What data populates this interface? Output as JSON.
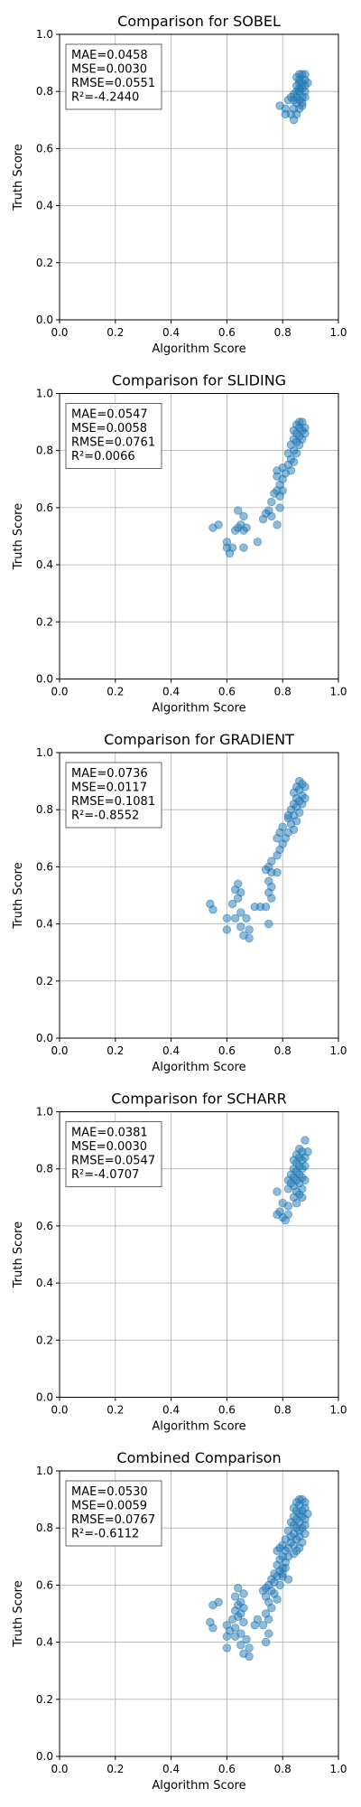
{
  "chart_data": [
    {
      "type": "scatter",
      "title": "Comparison for SOBEL",
      "xlabel": "Algorithm Score",
      "ylabel": "Truth Score",
      "xlim": [
        0,
        1
      ],
      "ylim": [
        0,
        1
      ],
      "xticks": [
        "0.0",
        "0.2",
        "0.4",
        "0.6",
        "0.8",
        "1.0"
      ],
      "yticks": [
        "0.0",
        "0.2",
        "0.4",
        "0.6",
        "0.8",
        "1.0"
      ],
      "grid": true,
      "point_color": "#1f77b4",
      "stats": [
        "MAE=0.0458",
        "MSE=0.0030",
        "RMSE=0.0551",
        "R²=-4.2440"
      ],
      "stats_position": "top-left",
      "points": [
        [
          0.86,
          0.86
        ],
        [
          0.87,
          0.86
        ],
        [
          0.88,
          0.86
        ],
        [
          0.85,
          0.85
        ],
        [
          0.86,
          0.84
        ],
        [
          0.88,
          0.84
        ],
        [
          0.87,
          0.83
        ],
        [
          0.85,
          0.82
        ],
        [
          0.86,
          0.83
        ],
        [
          0.88,
          0.82
        ],
        [
          0.89,
          0.83
        ],
        [
          0.87,
          0.81
        ],
        [
          0.85,
          0.8
        ],
        [
          0.86,
          0.8
        ],
        [
          0.88,
          0.8
        ],
        [
          0.84,
          0.79
        ],
        [
          0.85,
          0.78
        ],
        [
          0.87,
          0.78
        ],
        [
          0.83,
          0.78
        ],
        [
          0.84,
          0.77
        ],
        [
          0.86,
          0.77
        ],
        [
          0.88,
          0.78
        ],
        [
          0.82,
          0.77
        ],
        [
          0.85,
          0.76
        ],
        [
          0.87,
          0.75
        ],
        [
          0.79,
          0.75
        ],
        [
          0.81,
          0.74
        ],
        [
          0.84,
          0.74
        ],
        [
          0.86,
          0.74
        ],
        [
          0.83,
          0.72
        ],
        [
          0.85,
          0.72
        ],
        [
          0.81,
          0.72
        ],
        [
          0.84,
          0.7
        ],
        [
          0.87,
          0.76
        ],
        [
          0.86,
          0.81
        ]
      ]
    },
    {
      "type": "scatter",
      "title": "Comparison for SLIDING",
      "xlabel": "Algorithm Score",
      "ylabel": "Truth Score",
      "xlim": [
        0,
        1
      ],
      "ylim": [
        0,
        1
      ],
      "xticks": [
        "0.0",
        "0.2",
        "0.4",
        "0.6",
        "0.8",
        "1.0"
      ],
      "yticks": [
        "0.0",
        "0.2",
        "0.4",
        "0.6",
        "0.8",
        "1.0"
      ],
      "grid": true,
      "point_color": "#1f77b4",
      "stats": [
        "MAE=0.0547",
        "MSE=0.0058",
        "RMSE=0.0761",
        "R²=0.0066"
      ],
      "stats_position": "top-left",
      "points": [
        [
          0.86,
          0.9
        ],
        [
          0.87,
          0.9
        ],
        [
          0.85,
          0.89
        ],
        [
          0.88,
          0.88
        ],
        [
          0.86,
          0.88
        ],
        [
          0.84,
          0.87
        ],
        [
          0.87,
          0.87
        ],
        [
          0.85,
          0.86
        ],
        [
          0.88,
          0.86
        ],
        [
          0.86,
          0.85
        ],
        [
          0.84,
          0.84
        ],
        [
          0.87,
          0.84
        ],
        [
          0.85,
          0.83
        ],
        [
          0.83,
          0.82
        ],
        [
          0.86,
          0.82
        ],
        [
          0.84,
          0.8
        ],
        [
          0.82,
          0.79
        ],
        [
          0.85,
          0.79
        ],
        [
          0.83,
          0.77
        ],
        [
          0.84,
          0.76
        ],
        [
          0.82,
          0.75
        ],
        [
          0.8,
          0.74
        ],
        [
          0.83,
          0.73
        ],
        [
          0.78,
          0.73
        ],
        [
          0.81,
          0.72
        ],
        [
          0.78,
          0.71
        ],
        [
          0.8,
          0.7
        ],
        [
          0.79,
          0.68
        ],
        [
          0.78,
          0.66
        ],
        [
          0.79,
          0.64
        ],
        [
          0.77,
          0.65
        ],
        [
          0.76,
          0.62
        ],
        [
          0.79,
          0.6
        ],
        [
          0.75,
          0.59
        ],
        [
          0.74,
          0.58
        ],
        [
          0.76,
          0.57
        ],
        [
          0.73,
          0.56
        ],
        [
          0.78,
          0.54
        ],
        [
          0.64,
          0.59
        ],
        [
          0.66,
          0.57
        ],
        [
          0.65,
          0.54
        ],
        [
          0.67,
          0.53
        ],
        [
          0.64,
          0.53
        ],
        [
          0.63,
          0.52
        ],
        [
          0.66,
          0.52
        ],
        [
          0.57,
          0.54
        ],
        [
          0.55,
          0.53
        ],
        [
          0.6,
          0.48
        ],
        [
          0.62,
          0.46
        ],
        [
          0.6,
          0.46
        ],
        [
          0.61,
          0.44
        ],
        [
          0.66,
          0.46
        ],
        [
          0.71,
          0.48
        ],
        [
          0.8,
          0.66
        ]
      ]
    },
    {
      "type": "scatter",
      "title": "Comparison for GRADIENT",
      "xlabel": "Algorithm Score",
      "ylabel": "Truth Score",
      "xlim": [
        0,
        1
      ],
      "ylim": [
        0,
        1
      ],
      "xticks": [
        "0.0",
        "0.2",
        "0.4",
        "0.6",
        "0.8",
        "1.0"
      ],
      "yticks": [
        "0.0",
        "0.2",
        "0.4",
        "0.6",
        "0.8",
        "1.0"
      ],
      "grid": true,
      "point_color": "#1f77b4",
      "stats": [
        "MAE=0.0736",
        "MSE=0.0117",
        "RMSE=0.1081",
        "R²=-0.8552"
      ],
      "stats_position": "top-left",
      "points": [
        [
          0.86,
          0.9
        ],
        [
          0.87,
          0.89
        ],
        [
          0.85,
          0.88
        ],
        [
          0.88,
          0.88
        ],
        [
          0.86,
          0.87
        ],
        [
          0.84,
          0.86
        ],
        [
          0.87,
          0.85
        ],
        [
          0.85,
          0.84
        ],
        [
          0.88,
          0.84
        ],
        [
          0.86,
          0.83
        ],
        [
          0.84,
          0.82
        ],
        [
          0.87,
          0.82
        ],
        [
          0.85,
          0.81
        ],
        [
          0.83,
          0.8
        ],
        [
          0.86,
          0.79
        ],
        [
          0.84,
          0.78
        ],
        [
          0.82,
          0.77
        ],
        [
          0.85,
          0.76
        ],
        [
          0.83,
          0.75
        ],
        [
          0.8,
          0.74
        ],
        [
          0.84,
          0.73
        ],
        [
          0.82,
          0.72
        ],
        [
          0.79,
          0.72
        ],
        [
          0.81,
          0.7
        ],
        [
          0.8,
          0.68
        ],
        [
          0.79,
          0.66
        ],
        [
          0.78,
          0.64
        ],
        [
          0.76,
          0.62
        ],
        [
          0.75,
          0.6
        ],
        [
          0.76,
          0.58
        ],
        [
          0.74,
          0.59
        ],
        [
          0.78,
          0.58
        ],
        [
          0.75,
          0.55
        ],
        [
          0.76,
          0.53
        ],
        [
          0.75,
          0.51
        ],
        [
          0.76,
          0.49
        ],
        [
          0.74,
          0.46
        ],
        [
          0.72,
          0.46
        ],
        [
          0.75,
          0.4
        ],
        [
          0.64,
          0.54
        ],
        [
          0.63,
          0.52
        ],
        [
          0.65,
          0.51
        ],
        [
          0.64,
          0.49
        ],
        [
          0.62,
          0.47
        ],
        [
          0.65,
          0.44
        ],
        [
          0.63,
          0.42
        ],
        [
          0.6,
          0.42
        ],
        [
          0.67,
          0.42
        ],
        [
          0.65,
          0.39
        ],
        [
          0.6,
          0.38
        ],
        [
          0.68,
          0.38
        ],
        [
          0.66,
          0.36
        ],
        [
          0.68,
          0.35
        ],
        [
          0.54,
          0.47
        ],
        [
          0.55,
          0.45
        ],
        [
          0.7,
          0.46
        ],
        [
          0.78,
          0.7
        ],
        [
          0.82,
          0.78
        ]
      ]
    },
    {
      "type": "scatter",
      "title": "Comparison for SCHARR",
      "xlabel": "Algorithm Score",
      "ylabel": "Truth Score",
      "xlim": [
        0,
        1
      ],
      "ylim": [
        0,
        1
      ],
      "xticks": [
        "0.0",
        "0.2",
        "0.4",
        "0.6",
        "0.8",
        "1.0"
      ],
      "yticks": [
        "0.0",
        "0.2",
        "0.4",
        "0.6",
        "0.8",
        "1.0"
      ],
      "grid": true,
      "point_color": "#1f77b4",
      "stats": [
        "MAE=0.0381",
        "MSE=0.0030",
        "RMSE=0.0547",
        "R²=-4.0707"
      ],
      "stats_position": "top-left",
      "points": [
        [
          0.88,
          0.9
        ],
        [
          0.86,
          0.87
        ],
        [
          0.87,
          0.86
        ],
        [
          0.89,
          0.86
        ],
        [
          0.85,
          0.85
        ],
        [
          0.86,
          0.84
        ],
        [
          0.88,
          0.84
        ],
        [
          0.84,
          0.83
        ],
        [
          0.87,
          0.83
        ],
        [
          0.85,
          0.82
        ],
        [
          0.86,
          0.81
        ],
        [
          0.88,
          0.81
        ],
        [
          0.84,
          0.8
        ],
        [
          0.87,
          0.8
        ],
        [
          0.85,
          0.79
        ],
        [
          0.83,
          0.78
        ],
        [
          0.86,
          0.78
        ],
        [
          0.84,
          0.77
        ],
        [
          0.87,
          0.77
        ],
        [
          0.82,
          0.76
        ],
        [
          0.85,
          0.76
        ],
        [
          0.88,
          0.76
        ],
        [
          0.83,
          0.75
        ],
        [
          0.86,
          0.75
        ],
        [
          0.84,
          0.74
        ],
        [
          0.87,
          0.73
        ],
        [
          0.82,
          0.73
        ],
        [
          0.85,
          0.72
        ],
        [
          0.78,
          0.72
        ],
        [
          0.86,
          0.71
        ],
        [
          0.84,
          0.7
        ],
        [
          0.85,
          0.68
        ],
        [
          0.8,
          0.68
        ],
        [
          0.82,
          0.67
        ],
        [
          0.79,
          0.65
        ],
        [
          0.78,
          0.64
        ],
        [
          0.82,
          0.64
        ],
        [
          0.8,
          0.63
        ],
        [
          0.81,
          0.62
        ],
        [
          0.87,
          0.7
        ]
      ]
    },
    {
      "type": "scatter",
      "title": "Combined Comparison",
      "xlabel": "Algorithm Score",
      "ylabel": "Truth Score",
      "xlim": [
        0,
        1
      ],
      "ylim": [
        0,
        1
      ],
      "xticks": [
        "0.0",
        "0.2",
        "0.4",
        "0.6",
        "0.8",
        "1.0"
      ],
      "yticks": [
        "0.0",
        "0.2",
        "0.4",
        "0.6",
        "0.8",
        "1.0"
      ],
      "grid": true,
      "point_color": "#1f77b4",
      "stats": [
        "MAE=0.0530",
        "MSE=0.0059",
        "RMSE=0.0767",
        "R²=-0.6112"
      ],
      "stats_position": "top-left",
      "points": [
        [
          0.86,
          0.9
        ],
        [
          0.87,
          0.9
        ],
        [
          0.88,
          0.89
        ],
        [
          0.85,
          0.89
        ],
        [
          0.86,
          0.88
        ],
        [
          0.88,
          0.87
        ],
        [
          0.84,
          0.87
        ],
        [
          0.87,
          0.86
        ],
        [
          0.85,
          0.86
        ],
        [
          0.89,
          0.85
        ],
        [
          0.86,
          0.85
        ],
        [
          0.84,
          0.84
        ],
        [
          0.87,
          0.84
        ],
        [
          0.88,
          0.83
        ],
        [
          0.85,
          0.83
        ],
        [
          0.83,
          0.82
        ],
        [
          0.86,
          0.82
        ],
        [
          0.88,
          0.81
        ],
        [
          0.84,
          0.81
        ],
        [
          0.87,
          0.8
        ],
        [
          0.85,
          0.8
        ],
        [
          0.82,
          0.79
        ],
        [
          0.86,
          0.79
        ],
        [
          0.88,
          0.78
        ],
        [
          0.84,
          0.78
        ],
        [
          0.83,
          0.77
        ],
        [
          0.86,
          0.77
        ],
        [
          0.81,
          0.76
        ],
        [
          0.85,
          0.76
        ],
        [
          0.87,
          0.75
        ],
        [
          0.83,
          0.75
        ],
        [
          0.8,
          0.74
        ],
        [
          0.84,
          0.74
        ],
        [
          0.86,
          0.73
        ],
        [
          0.82,
          0.73
        ],
        [
          0.79,
          0.73
        ],
        [
          0.85,
          0.72
        ],
        [
          0.81,
          0.72
        ],
        [
          0.78,
          0.72
        ],
        [
          0.84,
          0.71
        ],
        [
          0.8,
          0.7
        ],
        [
          0.82,
          0.7
        ],
        [
          0.79,
          0.69
        ],
        [
          0.81,
          0.68
        ],
        [
          0.78,
          0.67
        ],
        [
          0.8,
          0.66
        ],
        [
          0.79,
          0.65
        ],
        [
          0.77,
          0.64
        ],
        [
          0.78,
          0.63
        ],
        [
          0.8,
          0.63
        ],
        [
          0.76,
          0.62
        ],
        [
          0.77,
          0.61
        ],
        [
          0.75,
          0.6
        ],
        [
          0.79,
          0.6
        ],
        [
          0.74,
          0.59
        ],
        [
          0.76,
          0.58
        ],
        [
          0.73,
          0.58
        ],
        [
          0.77,
          0.57
        ],
        [
          0.74,
          0.56
        ],
        [
          0.78,
          0.55
        ],
        [
          0.75,
          0.54
        ],
        [
          0.76,
          0.52
        ],
        [
          0.74,
          0.5
        ],
        [
          0.75,
          0.48
        ],
        [
          0.73,
          0.46
        ],
        [
          0.75,
          0.43
        ],
        [
          0.74,
          0.4
        ],
        [
          0.64,
          0.59
        ],
        [
          0.66,
          0.57
        ],
        [
          0.63,
          0.56
        ],
        [
          0.65,
          0.54
        ],
        [
          0.64,
          0.53
        ],
        [
          0.66,
          0.52
        ],
        [
          0.63,
          0.51
        ],
        [
          0.65,
          0.5
        ],
        [
          0.64,
          0.49
        ],
        [
          0.62,
          0.48
        ],
        [
          0.66,
          0.47
        ],
        [
          0.6,
          0.46
        ],
        [
          0.63,
          0.45
        ],
        [
          0.61,
          0.44
        ],
        [
          0.65,
          0.43
        ],
        [
          0.6,
          0.42
        ],
        [
          0.63,
          0.42
        ],
        [
          0.67,
          0.41
        ],
        [
          0.65,
          0.39
        ],
        [
          0.6,
          0.38
        ],
        [
          0.68,
          0.38
        ],
        [
          0.66,
          0.36
        ],
        [
          0.68,
          0.35
        ],
        [
          0.57,
          0.54
        ],
        [
          0.55,
          0.53
        ],
        [
          0.54,
          0.47
        ],
        [
          0.55,
          0.45
        ],
        [
          0.7,
          0.46
        ],
        [
          0.71,
          0.48
        ],
        [
          0.8,
          0.64
        ],
        [
          0.82,
          0.62
        ],
        [
          0.81,
          0.66
        ]
      ]
    }
  ]
}
